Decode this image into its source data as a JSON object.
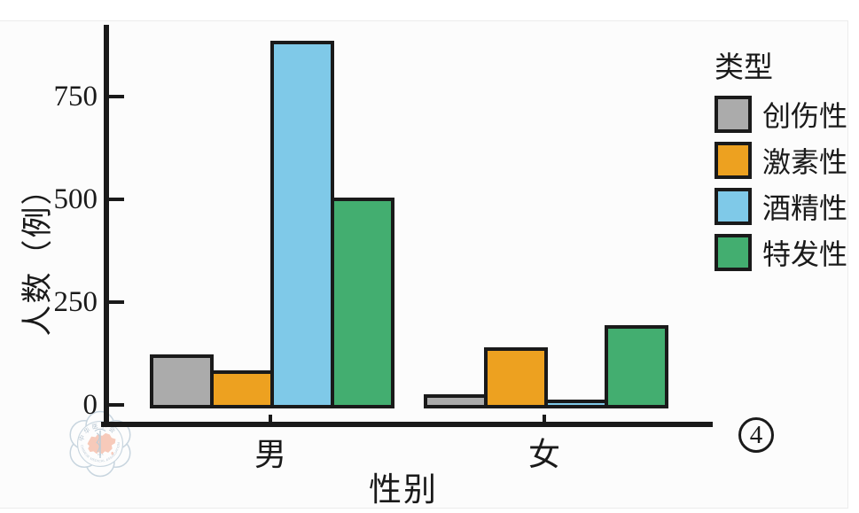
{
  "page": {
    "figure_number": "4",
    "background": "#ffffff"
  },
  "watermark": {
    "name_cn": "中华医学会",
    "name_en": "CHINESE MEDICAL ASSOCIATION",
    "year": "1915"
  },
  "chart_data": {
    "type": "bar",
    "title": "",
    "xlabel": "性别",
    "ylabel": "人数（例）",
    "categories": [
      "男",
      "女"
    ],
    "ylim": [
      0,
      920
    ],
    "yticks": [
      "0",
      "250",
      "500",
      "750"
    ],
    "ytick_values": [
      0,
      250,
      500,
      750
    ],
    "grid": false,
    "legend": {
      "title": "类型",
      "position": "right"
    },
    "bar_outline": "#1a1a1a",
    "series": [
      {
        "name": "创伤性",
        "color": "#ABABAB",
        "values": [
          118,
          22
        ]
      },
      {
        "name": "激素性",
        "color": "#EDA120",
        "values": [
          80,
          135
        ]
      },
      {
        "name": "酒精性",
        "color": "#7FC9E8",
        "values": [
          880,
          8
        ]
      },
      {
        "name": "特发性",
        "color": "#43AE70",
        "values": [
          500,
          190
        ]
      }
    ]
  }
}
